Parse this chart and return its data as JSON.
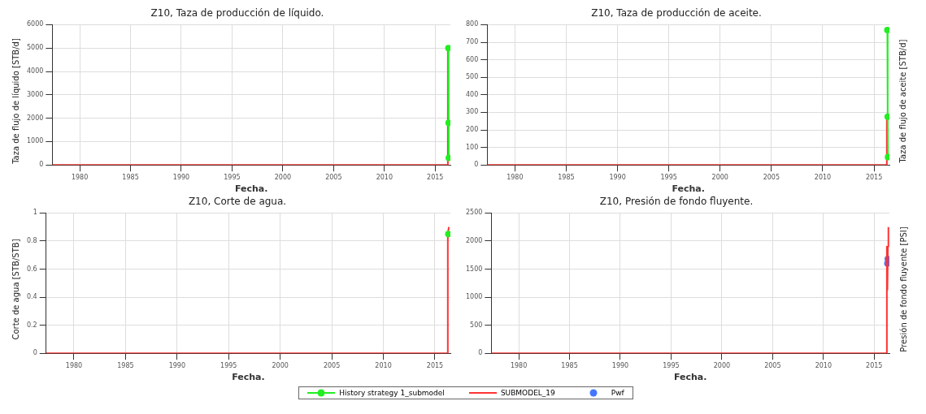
{
  "chart_data": [
    {
      "type": "line",
      "title": "Z10, Taza de producción de líquido.",
      "xlabel": "Fecha.",
      "ylabel": "Taza de flujo de líquido [STB/d]",
      "xlim": [
        1977.3,
        2016.5
      ],
      "xticks": [
        1980,
        1985,
        1990,
        1995,
        2000,
        2005,
        2010,
        2015
      ],
      "ylim": [
        0,
        6000
      ],
      "yticks": [
        0,
        1000,
        2000,
        3000,
        4000,
        5000,
        6000
      ],
      "grid": true,
      "legend": "bottom",
      "series": [
        {
          "name": "History strategy 1_submodel",
          "color": "#22ee22",
          "marker": "circle",
          "x": [
            2016.3,
            2016.32,
            2016.34
          ],
          "values": [
            5000,
            1800,
            300
          ]
        },
        {
          "name": "SUBMODEL_19",
          "color": "#ff3333",
          "marker": "none",
          "x": [
            1977.3,
            2016.2,
            2016.25,
            2016.3,
            2016.35
          ],
          "values": [
            0,
            0,
            5000,
            1800,
            300
          ]
        }
      ]
    },
    {
      "type": "line",
      "title": "Z10, Taza de producción de aceite.",
      "xlabel": "Fecha.",
      "ylabel": "Taza de flujo de aceite [STB/d]",
      "xlim": [
        1977.3,
        2016.5
      ],
      "xticks": [
        1980,
        1985,
        1990,
        1995,
        2000,
        2005,
        2010,
        2015
      ],
      "ylim": [
        0,
        800
      ],
      "yticks": [
        0,
        100,
        200,
        300,
        400,
        500,
        600,
        700,
        800
      ],
      "grid": true,
      "legend": "bottom",
      "series": [
        {
          "name": "History strategy 1_submodel",
          "color": "#22ee22",
          "marker": "circle",
          "x": [
            2016.3,
            2016.33,
            2016.36
          ],
          "values": [
            770,
            275,
            45
          ]
        },
        {
          "name": "SUBMODEL_19",
          "color": "#ff3333",
          "marker": "none",
          "x": [
            1977.3,
            2016.2,
            2016.25,
            2016.36
          ],
          "values": [
            0,
            0,
            265,
            45
          ]
        }
      ]
    },
    {
      "type": "line",
      "title": "Z10, Corte de agua.",
      "xlabel": "Fecha.",
      "ylabel": "Corte de agua [STB/STB]",
      "xlim": [
        1977.3,
        2016.5
      ],
      "xticks": [
        1980,
        1985,
        1990,
        1995,
        2000,
        2005,
        2010,
        2015
      ],
      "ylim": [
        0,
        1
      ],
      "yticks": [
        0,
        0.2,
        0.4,
        0.6,
        0.8,
        1
      ],
      "grid": true,
      "legend": "bottom",
      "series": [
        {
          "name": "History strategy 1_submodel",
          "color": "#22ee22",
          "marker": "circle",
          "x": [
            2016.3
          ],
          "values": [
            0.85
          ]
        },
        {
          "name": "SUBMODEL_19",
          "color": "#ff3333",
          "marker": "none",
          "x": [
            1977.3,
            2016.2,
            2016.25,
            2016.35
          ],
          "values": [
            0,
            0,
            0.85,
            0.9
          ]
        }
      ]
    },
    {
      "type": "line",
      "title": "Z10, Presión de fondo fluyente.",
      "xlabel": "Fecha.",
      "ylabel": "Presión de fondo fluyente [PSI]",
      "xlim": [
        1977.3,
        2016.5
      ],
      "xticks": [
        1980,
        1985,
        1990,
        1995,
        2000,
        2005,
        2010,
        2015
      ],
      "ylim": [
        0,
        2500
      ],
      "yticks": [
        0,
        500,
        1000,
        1500,
        2000,
        2500
      ],
      "grid": true,
      "legend": "bottom",
      "series": [
        {
          "name": "SUBMODEL_19",
          "color": "#ff3333",
          "marker": "none",
          "x": [
            1977.3,
            2016.2,
            2016.25,
            2016.3,
            2016.35,
            2016.4
          ],
          "values": [
            0,
            0,
            1900,
            1130,
            1900,
            2250
          ]
        },
        {
          "name": "Pwf",
          "type": "scatter",
          "color": "#4477ff",
          "marker": "circle",
          "x": [
            2016.3,
            2016.34
          ],
          "values": [
            1600,
            1680
          ]
        }
      ]
    }
  ]
}
